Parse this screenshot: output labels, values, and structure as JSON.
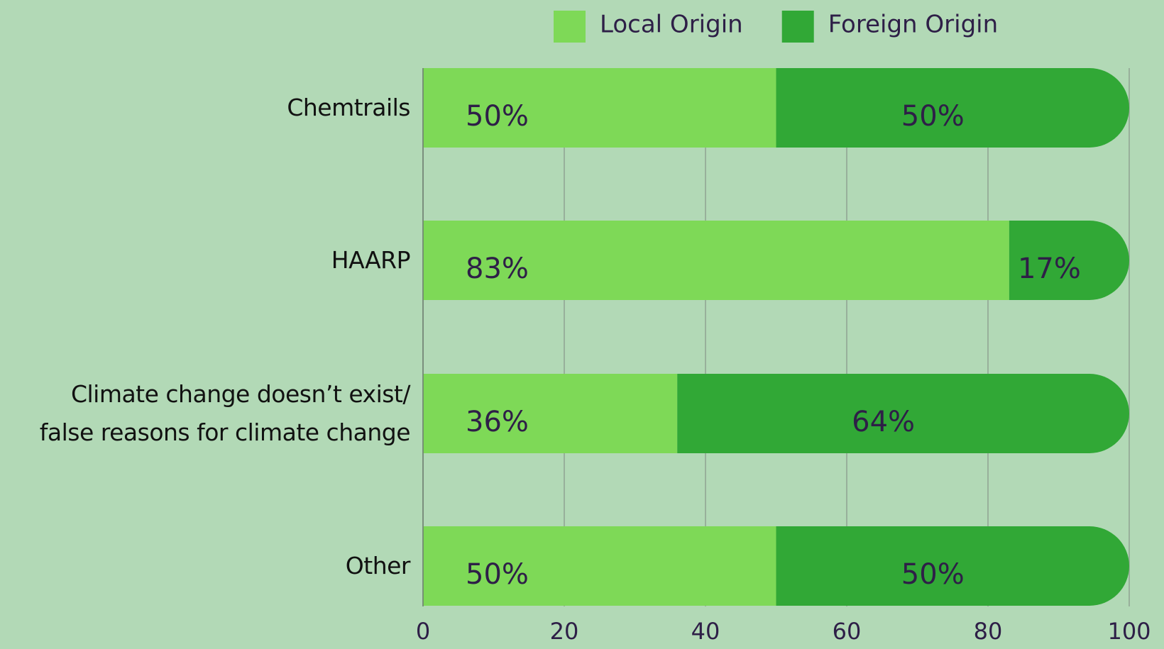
{
  "chart_data": {
    "type": "stacked_bar_horizontal",
    "categories": [
      "Chemtrails",
      "HAARP",
      "Climate change doesn’t exist/\nfalse reasons for climate change",
      "Other"
    ],
    "series": [
      {
        "name": "Local Origin",
        "color": "#7ed957",
        "values": [
          50,
          83,
          36,
          50
        ],
        "value_labels": [
          "50%",
          "83%",
          "36%",
          "50%"
        ]
      },
      {
        "name": "Foreign Origin",
        "color": "#31a836",
        "values": [
          50,
          17,
          64,
          50
        ],
        "value_labels": [
          "50%",
          "17%",
          "64%",
          "50%"
        ]
      }
    ],
    "xlim": [
      0,
      100
    ],
    "xticks": [
      0,
      20,
      40,
      60,
      80,
      100
    ],
    "grid": true,
    "legend": "top"
  }
}
